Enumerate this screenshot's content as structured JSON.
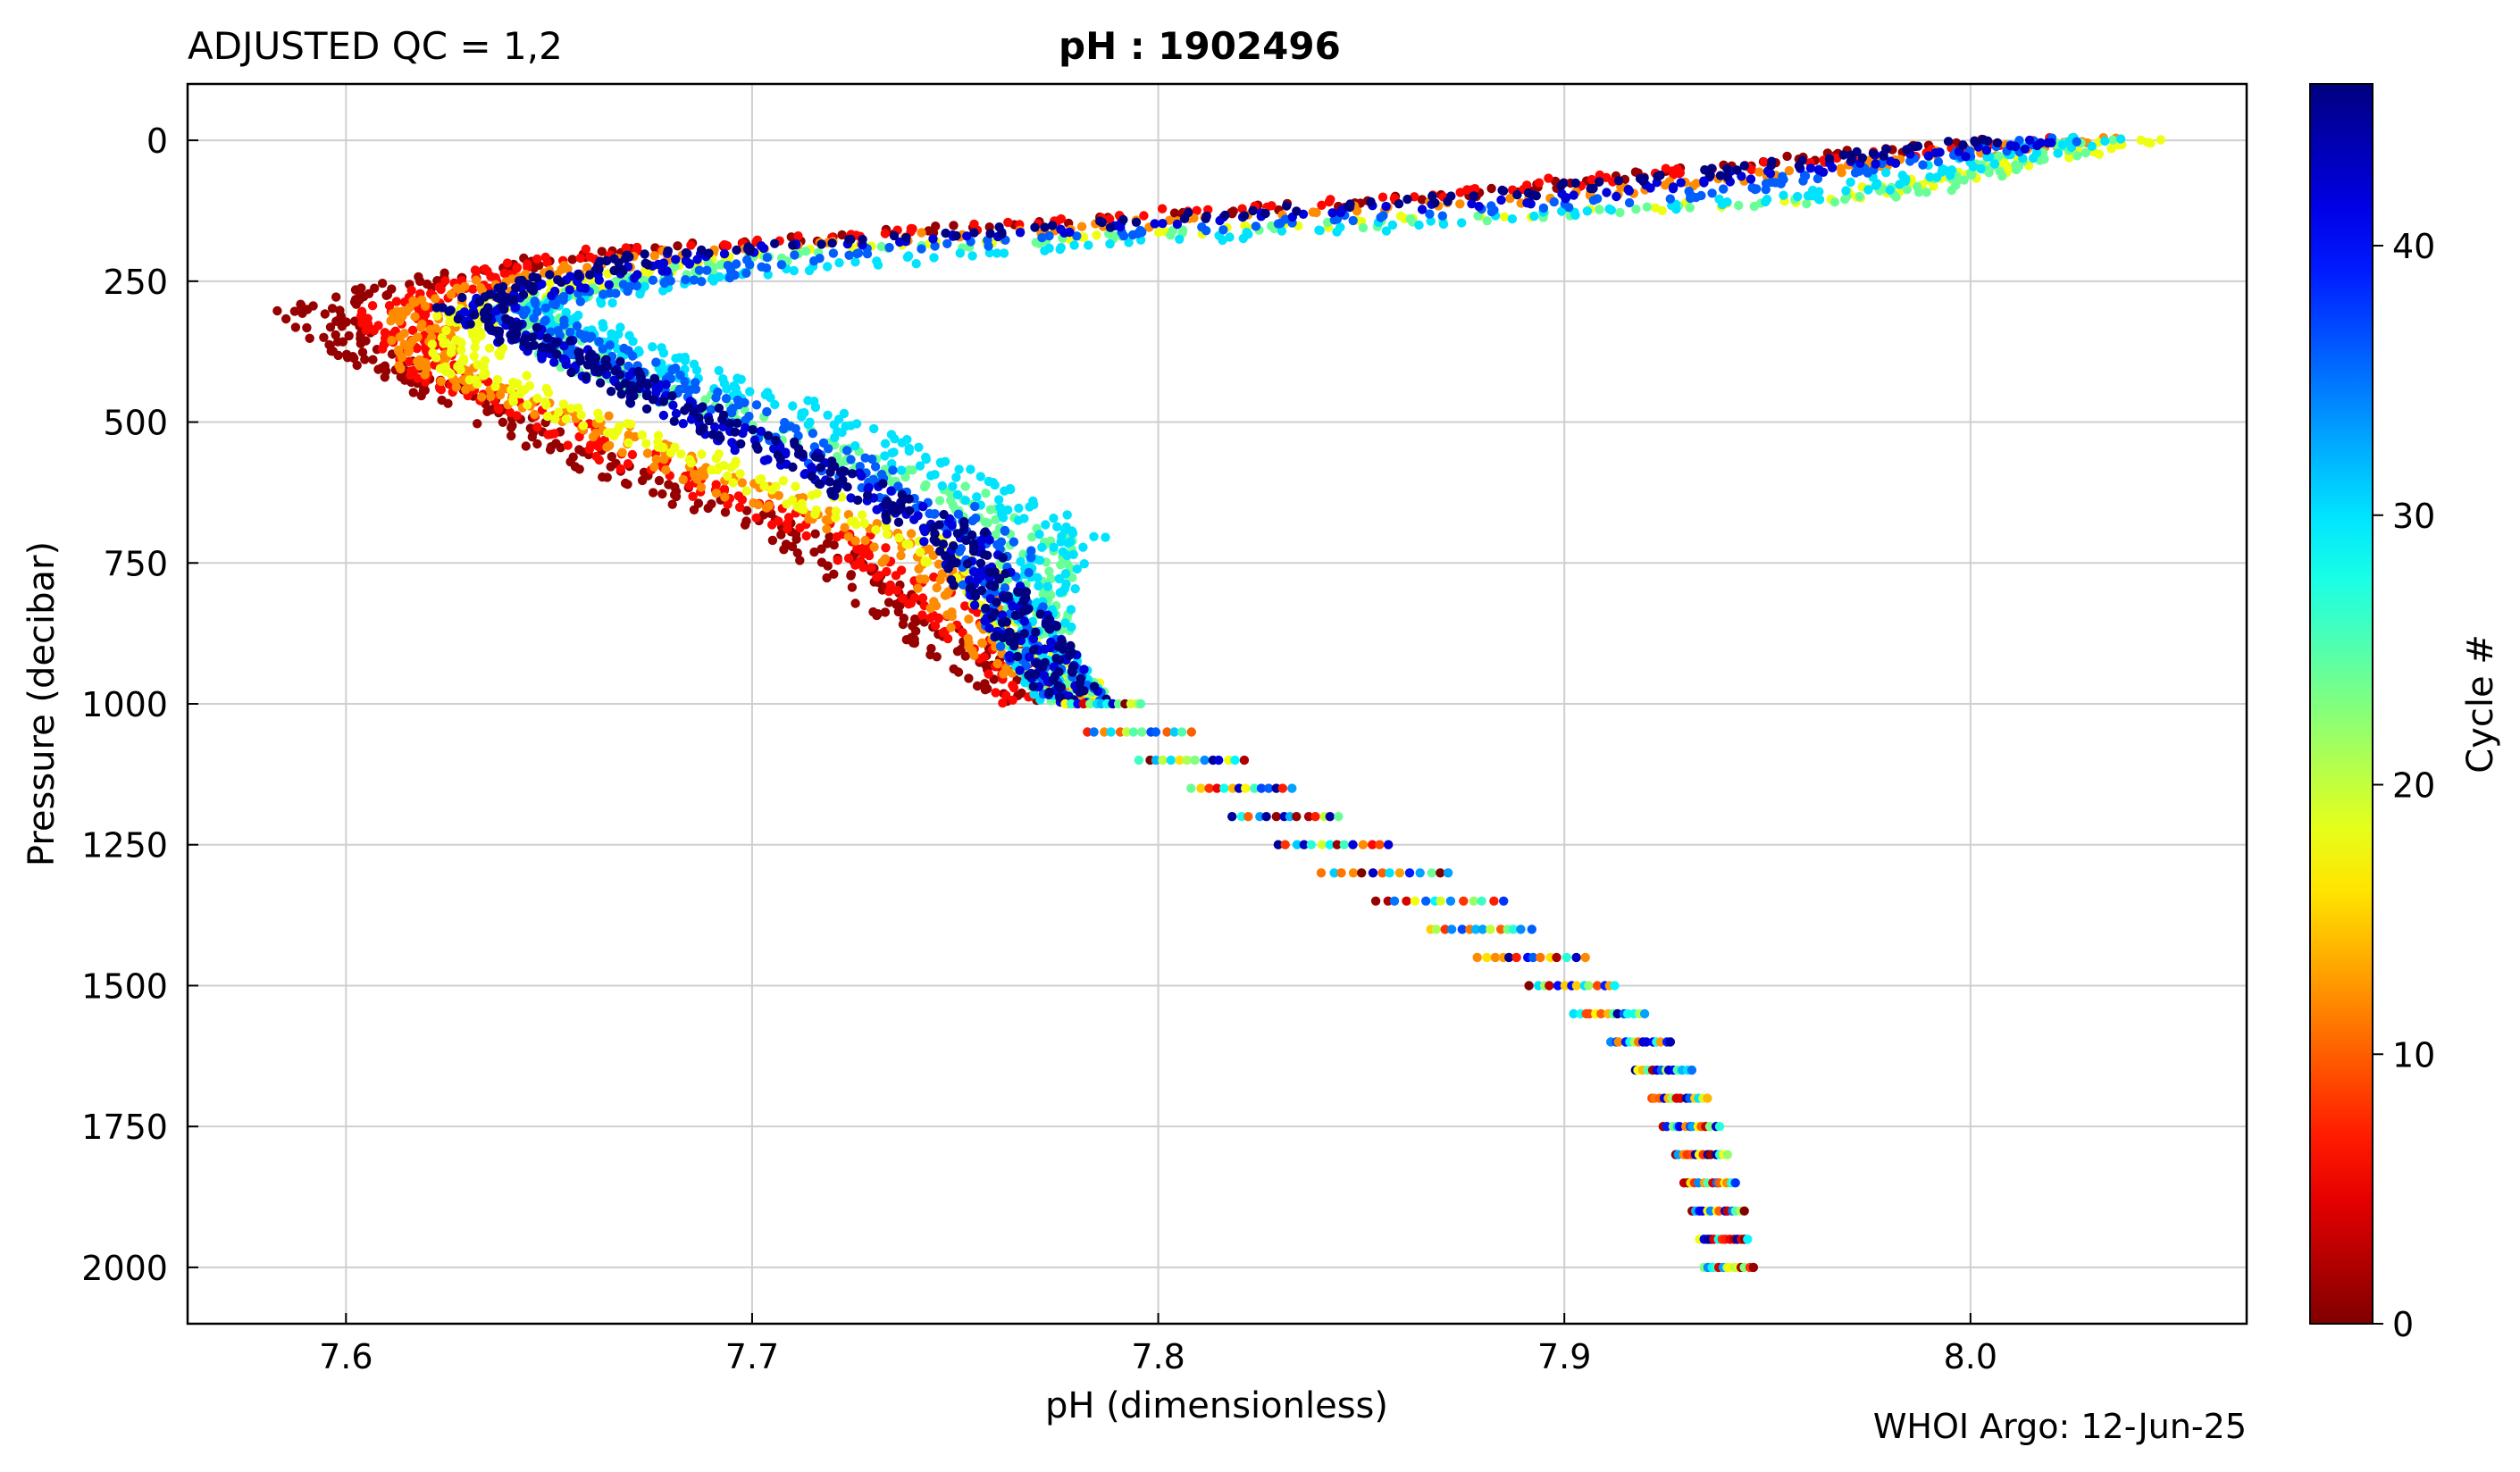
{
  "header": {
    "qc_label": "ADJUSTED QC = 1,2",
    "title_prefix": "pH",
    "title_sep": " : ",
    "title_float": "1902496"
  },
  "footer": {
    "credit": "WHOI Argo: 12-Jun-25"
  },
  "chart_data": {
    "type": "scatter",
    "xlabel": "pH  (dimensionless)",
    "ylabel": "Pressure  (decibar)",
    "xlim": [
      7.561,
      8.068
    ],
    "ylim": [
      2100,
      -100
    ],
    "y_inverted": true,
    "grid": true,
    "xticks": [
      7.6,
      7.7,
      7.8,
      7.9,
      8.0
    ],
    "xtick_labels": [
      "7.6",
      "7.7",
      "7.8",
      "7.9",
      "8.0"
    ],
    "yticks": [
      0,
      250,
      500,
      750,
      1000,
      1250,
      1500,
      1750,
      2000
    ],
    "ytick_labels": [
      "0",
      "250",
      "500",
      "750",
      "1000",
      "1250",
      "1500",
      "1750",
      "2000"
    ],
    "colorbar": {
      "label": "Cycle #",
      "colormap": "jet",
      "reversed": true,
      "range": [
        0,
        46
      ],
      "ticks": [
        0,
        10,
        20,
        30,
        40
      ],
      "tick_labels": [
        "0",
        "10",
        "20",
        "30",
        "40"
      ]
    },
    "series": [
      {
        "cycle": 1,
        "pressure": [
          0,
          100,
          200,
          250,
          300,
          400,
          500,
          600,
          700,
          800,
          900,
          1000
        ],
        "ph": [
          8.0,
          7.87,
          7.66,
          7.62,
          7.59,
          7.61,
          7.64,
          7.67,
          7.71,
          7.73,
          7.75,
          7.77
        ]
      },
      {
        "cycle": 6,
        "pressure": [
          0,
          100,
          200,
          250,
          300,
          400,
          500,
          600,
          700,
          800,
          900,
          1000
        ],
        "ph": [
          8.02,
          7.86,
          7.66,
          7.63,
          7.61,
          7.62,
          7.65,
          7.68,
          7.72,
          7.74,
          7.76,
          7.77
        ]
      },
      {
        "cycle": 12,
        "pressure": [
          0,
          100,
          200,
          250,
          300,
          400,
          500,
          600,
          700,
          800,
          900,
          1000
        ],
        "ph": [
          8.03,
          7.9,
          7.68,
          7.64,
          7.62,
          7.62,
          7.66,
          7.69,
          7.73,
          7.75,
          7.76,
          7.78
        ]
      },
      {
        "cycle": 18,
        "pressure": [
          0,
          100,
          200,
          250,
          300,
          400,
          500,
          600,
          700,
          800,
          900,
          1000
        ],
        "ph": [
          8.04,
          7.97,
          7.7,
          7.66,
          7.63,
          7.63,
          7.66,
          7.7,
          7.74,
          7.76,
          7.77,
          7.78
        ]
      },
      {
        "cycle": 24,
        "pressure": [
          0,
          100,
          200,
          250,
          300,
          400,
          500,
          600,
          700,
          800,
          900,
          1000
        ],
        "ph": [
          8.03,
          7.98,
          7.71,
          7.67,
          7.64,
          7.66,
          7.7,
          7.74,
          7.77,
          7.77,
          7.77,
          7.78
        ]
      },
      {
        "cycle": 30,
        "pressure": [
          0,
          100,
          200,
          250,
          300,
          400,
          500,
          600,
          700,
          800,
          900,
          1000
        ],
        "ph": [
          8.03,
          7.96,
          7.76,
          7.68,
          7.65,
          7.68,
          7.72,
          7.75,
          7.78,
          7.77,
          7.77,
          7.78
        ]
      },
      {
        "cycle": 36,
        "pressure": [
          0,
          100,
          200,
          250,
          300,
          400,
          500,
          600,
          700,
          800,
          900,
          1000
        ],
        "ph": [
          8.02,
          7.93,
          7.72,
          7.68,
          7.64,
          7.67,
          7.7,
          7.73,
          7.76,
          7.76,
          7.77,
          7.78
        ]
      },
      {
        "cycle": 42,
        "pressure": [
          0,
          100,
          200,
          250,
          300,
          400,
          500,
          600,
          700,
          800,
          900,
          1000
        ],
        "ph": [
          8.02,
          7.9,
          7.69,
          7.66,
          7.63,
          7.66,
          7.69,
          7.72,
          7.75,
          7.76,
          7.77,
          7.78
        ]
      },
      {
        "cycle": 46,
        "pressure": [
          0,
          100,
          200,
          250,
          300,
          400,
          500,
          600,
          700,
          800,
          900,
          1000
        ],
        "ph": [
          8.01,
          7.88,
          7.68,
          7.65,
          7.63,
          7.66,
          7.69,
          7.72,
          7.75,
          7.76,
          7.77,
          7.78
        ]
      }
    ],
    "deep_profile": {
      "pressure": [
        1000,
        1050,
        1100,
        1150,
        1200,
        1250,
        1300,
        1350,
        1400,
        1450,
        1500,
        1550,
        1600,
        1650,
        1700,
        1750,
        1800,
        1850,
        1900,
        1950,
        2000
      ],
      "ph_min": [
        7.777,
        7.782,
        7.795,
        7.808,
        7.818,
        7.829,
        7.84,
        7.853,
        7.866,
        7.878,
        7.891,
        7.902,
        7.911,
        7.917,
        7.921,
        7.924,
        7.927,
        7.929,
        7.931,
        7.933,
        7.934
      ],
      "ph_max": [
        7.797,
        7.809,
        7.822,
        7.834,
        7.846,
        7.858,
        7.873,
        7.886,
        7.893,
        7.906,
        7.914,
        7.921,
        7.927,
        7.932,
        7.936,
        7.939,
        7.941,
        7.943,
        7.945,
        7.946,
        7.947
      ]
    }
  }
}
